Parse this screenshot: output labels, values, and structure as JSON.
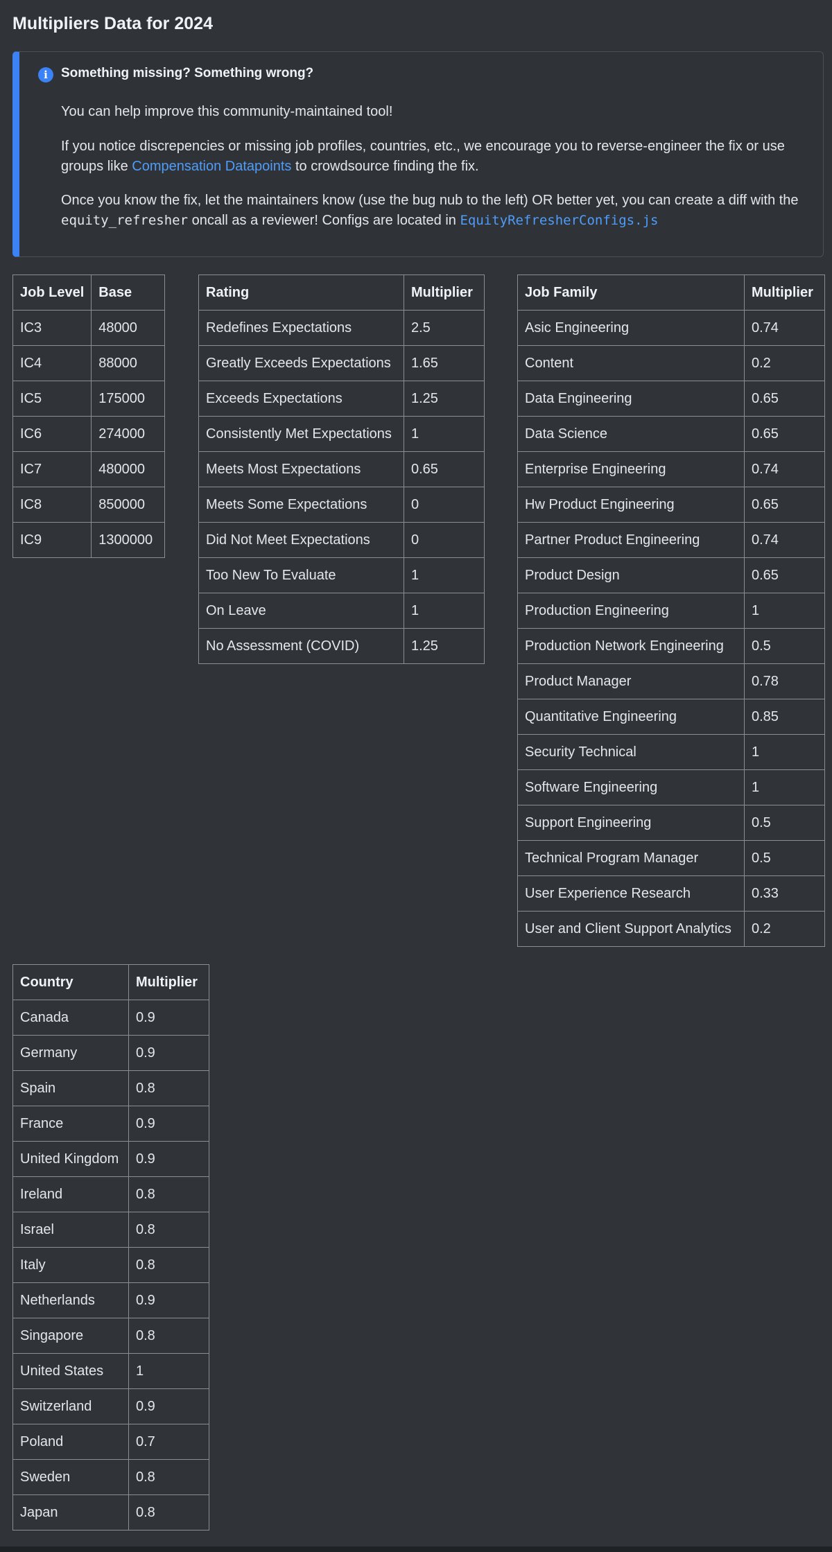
{
  "title": "Multipliers Data for 2024",
  "notice": {
    "heading": "Something missing? Something wrong?",
    "paragraph1": "You can help improve this community-maintained tool!",
    "paragraph2": {
      "before": "If you notice discrepencies or missing job profiles, countries, etc., we encourage you to reverse-engineer the fix or use groups like",
      "link": "Compensation Datapoints",
      "after": "to crowdsource finding the fix."
    },
    "paragraph3": {
      "before": "Once you know the fix, let the maintainers know (use the bug nub to the left) OR better yet, you can create a diff with the",
      "code": "equity_refresher",
      "middle": "oncall as a reviewer! Configs are located in",
      "link": "EquityRefresherConfigs.js"
    }
  },
  "tables": [
    {
      "header": [
        "Job Level",
        "Base"
      ],
      "rows": [
        [
          "IC3",
          48000
        ],
        [
          "IC4",
          88000
        ],
        [
          "IC5",
          175000
        ],
        [
          "IC6",
          274000
        ],
        [
          "IC7",
          480000
        ],
        [
          "IC8",
          850000
        ],
        [
          "IC9",
          1300000
        ]
      ]
    },
    {
      "header": [
        "Rating",
        "Multiplier"
      ],
      "rows": [
        [
          "Redefines Expectations",
          2.5
        ],
        [
          "Greatly Exceeds Expectations",
          1.65
        ],
        [
          "Exceeds Expectations",
          1.25
        ],
        [
          "Consistently Met Expectations",
          1
        ],
        [
          "Meets Most Expectations",
          0.65
        ],
        [
          "Meets Some Expectations",
          0
        ],
        [
          "Did Not Meet Expectations",
          0
        ],
        [
          "Too New To Evaluate",
          1
        ],
        [
          "On Leave",
          1
        ],
        [
          "No Assessment (COVID)",
          1.25
        ]
      ]
    },
    {
      "header": [
        "Job Family",
        "Multiplier"
      ],
      "rows": [
        [
          "Asic Engineering",
          0.74
        ],
        [
          "Content",
          0.2
        ],
        [
          "Data Engineering",
          0.65
        ],
        [
          "Data Science",
          0.65
        ],
        [
          "Enterprise Engineering",
          0.74
        ],
        [
          "Hw Product Engineering",
          0.65
        ],
        [
          "Partner Product Engineering",
          0.74
        ],
        [
          "Product Design",
          0.65
        ],
        [
          "Production Engineering",
          1
        ],
        [
          "Production Network Engineering",
          0.5
        ],
        [
          "Product Manager",
          0.78
        ],
        [
          "Quantitative Engineering",
          0.85
        ],
        [
          "Security Technical",
          1
        ],
        [
          "Software Engineering",
          1
        ],
        [
          "Support Engineering",
          0.5
        ],
        [
          "Technical Program Manager",
          0.5
        ],
        [
          "User Experience Research",
          0.33
        ],
        [
          "User and Client Support Analytics",
          0.2
        ]
      ]
    },
    {
      "header": [
        "Country",
        "Multiplier"
      ],
      "rows": [
        [
          "Canada",
          0.9
        ],
        [
          "Germany",
          0.9
        ],
        [
          "Spain",
          0.8
        ],
        [
          "France",
          0.9
        ],
        [
          "United Kingdom",
          0.9
        ],
        [
          "Ireland",
          0.8
        ],
        [
          "Israel",
          0.8
        ],
        [
          "Italy",
          0.8
        ],
        [
          "Netherlands",
          0.9
        ],
        [
          "Singapore",
          0.8
        ],
        [
          "United States",
          1
        ],
        [
          "Switzerland",
          0.9
        ],
        [
          "Poland",
          0.7
        ],
        [
          "Sweden",
          0.8
        ],
        [
          "Japan",
          0.8
        ]
      ]
    }
  ]
}
